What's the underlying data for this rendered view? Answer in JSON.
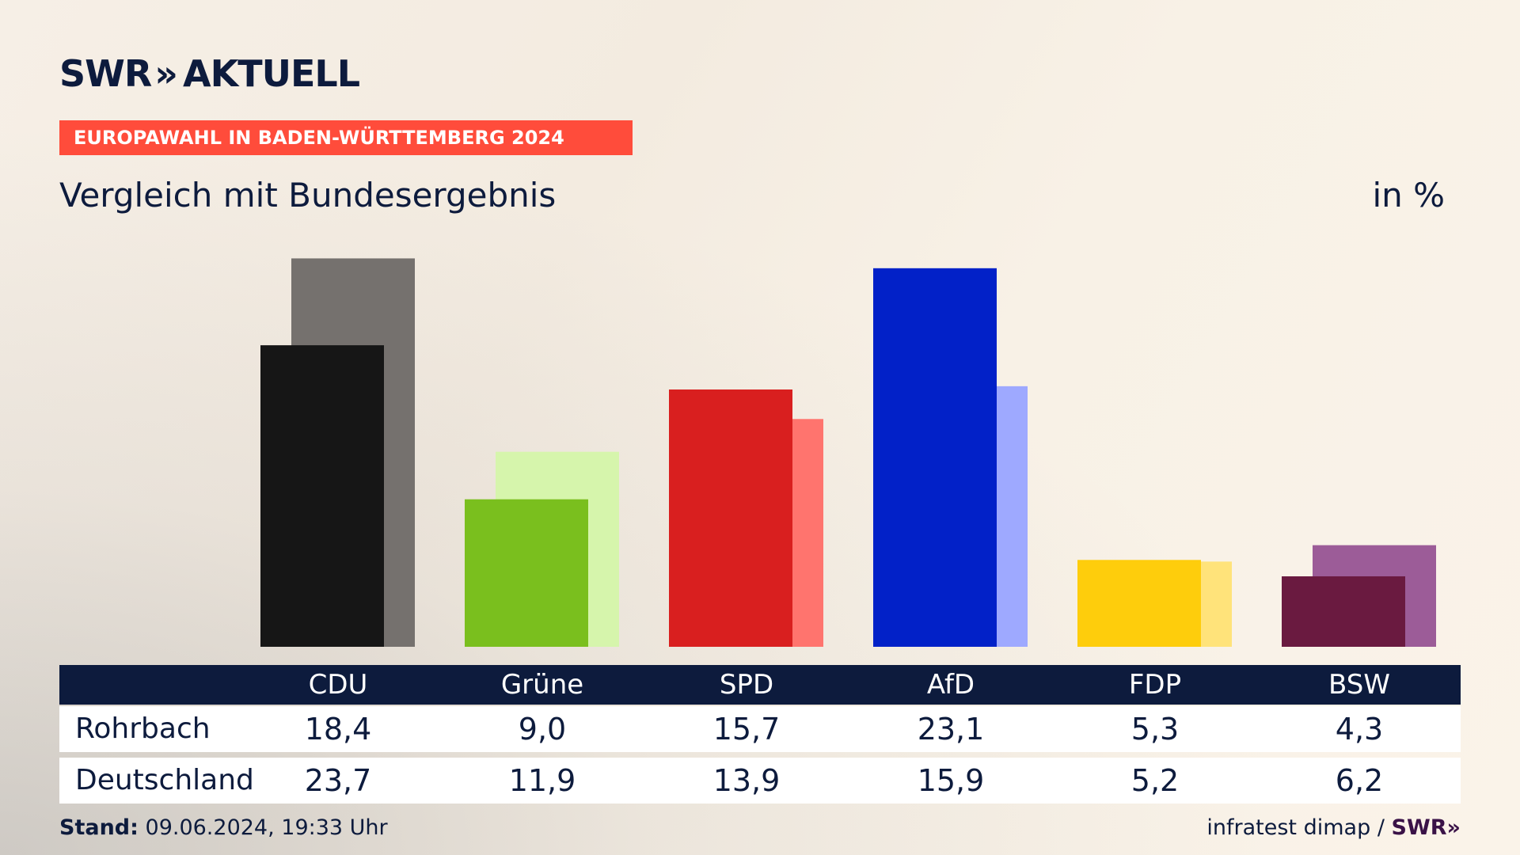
{
  "header": {
    "brand": "SWR",
    "brand_sub": "AKTUELL",
    "banner": "EUROPAWAHL IN BADEN-WÜRTTEMBERG 2024",
    "subtitle": "Vergleich mit Bundesergebnis",
    "unit": "in %"
  },
  "chart_data": {
    "type": "bar",
    "categories": [
      "CDU",
      "Grüne",
      "SPD",
      "AfD",
      "FDP",
      "BSW"
    ],
    "series": [
      {
        "name": "Rohrbach",
        "values": [
          18.4,
          9.0,
          15.7,
          23.1,
          5.3,
          4.3
        ],
        "colors": [
          "#161616",
          "#7abf1e",
          "#d91f1f",
          "#0221c8",
          "#fecd0c",
          "#6a1a40"
        ]
      },
      {
        "name": "Deutschland",
        "values": [
          23.7,
          11.9,
          13.9,
          15.9,
          5.2,
          6.2
        ],
        "colors": [
          "#75716e",
          "#d6f5ac",
          "#ff746e",
          "#9ea9ff",
          "#ffe37a",
          "#9c5c98"
        ]
      }
    ],
    "ylim": [
      0,
      25
    ],
    "grid": false
  },
  "table": {
    "rows": [
      {
        "label": "Rohrbach",
        "values": [
          "18,4",
          "9,0",
          "15,7",
          "23,1",
          "5,3",
          "4,3"
        ]
      },
      {
        "label": "Deutschland",
        "values": [
          "23,7",
          "11,9",
          "13,9",
          "15,9",
          "5,2",
          "6,2"
        ]
      }
    ]
  },
  "footer": {
    "stand_label": "Stand:",
    "stand_value": "09.06.2024, 19:33 Uhr",
    "source": "infratest dimap /",
    "source_brand": "SWR"
  }
}
